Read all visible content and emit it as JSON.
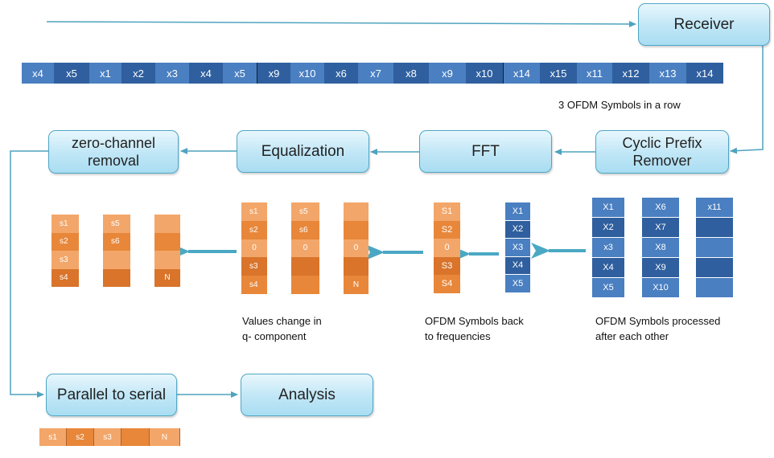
{
  "boxes": {
    "receiver": "Receiver",
    "cyclic_prefix_remover": "Cyclic Prefix\nRemover",
    "fft": "FFT",
    "equalization": "Equalization",
    "zero_channel_removal": "zero-channel\nremoval",
    "parallel_to_serial": "Parallel to serial",
    "analysis": "Analysis"
  },
  "captions": {
    "three_symbols": "3 OFDM Symbols in a row",
    "processed": "OFDM Symbols processed\nafter each other",
    "back_to_freq": "OFDM Symbols back\nto frequencies",
    "values_change": "Values change in\nq- component"
  },
  "stream": [
    "x4",
    "x5",
    "x1",
    "x2",
    "x3",
    "x4",
    "x5",
    "x9",
    "x10",
    "x6",
    "x7",
    "x8",
    "x9",
    "x10",
    "x14",
    "x15",
    "x11",
    "x12",
    "x13",
    "x14"
  ],
  "symbol_columns": [
    [
      "X1",
      "X2",
      "x3",
      "X4",
      "X5"
    ],
    [
      "X6",
      "X7",
      "X8",
      "X9",
      "X10"
    ],
    [
      "x11",
      "",
      "",
      "",
      ""
    ]
  ],
  "fft_column": [
    "X1",
    "X2",
    "X3",
    "X4",
    "X5"
  ],
  "freq_column": [
    "S1",
    "S2",
    "0",
    "S3",
    "S4"
  ],
  "equalized_grid": [
    [
      "s1",
      "",
      "s5",
      "",
      ""
    ],
    [
      "s2",
      "",
      "s6",
      "",
      ""
    ],
    [
      "0",
      "",
      "0",
      "",
      "0"
    ],
    [
      "s3",
      "",
      "",
      "",
      ""
    ],
    [
      "s4",
      "",
      "",
      "",
      "N"
    ]
  ],
  "removed_grid": [
    [
      "s1",
      "",
      "s5",
      "",
      ""
    ],
    [
      "s2",
      "",
      "s6",
      "",
      ""
    ],
    [
      "s3",
      "",
      "",
      "",
      ""
    ],
    [
      "s4",
      "",
      "",
      "",
      "N"
    ]
  ],
  "serial_row": [
    "s1",
    "s2",
    "s3",
    "",
    "N"
  ],
  "colors": {
    "blue_dark": "#2f5f9e",
    "blue_mid": "#4a7fc1",
    "orange_light": "#f3a669",
    "orange_mid": "#e8873a",
    "orange_dark": "#d9742a",
    "arrow_teal": "#4fa3bf",
    "box_border": "#4fa6c6"
  }
}
